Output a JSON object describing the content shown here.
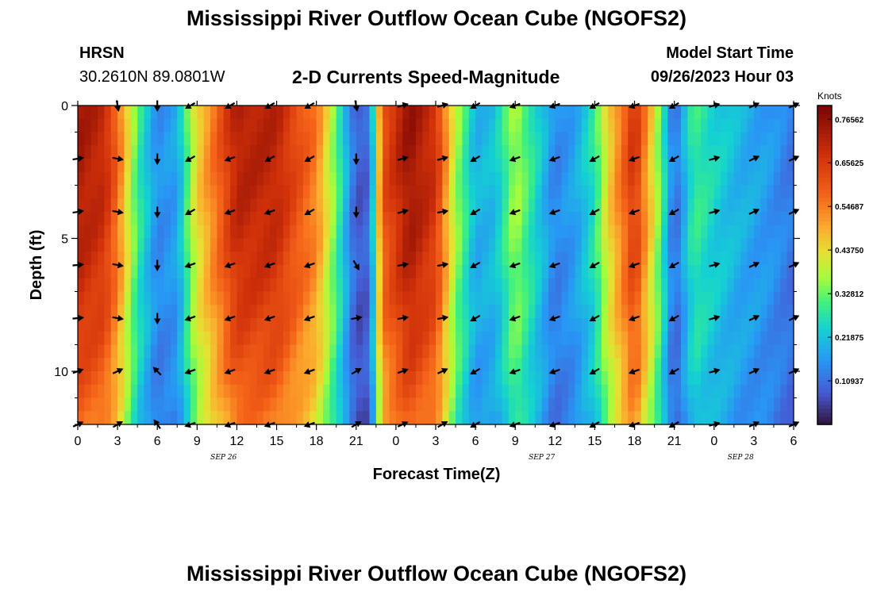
{
  "header": {
    "title": "Mississippi River Outflow Ocean Cube (NGOFS2)",
    "station": "HRSN",
    "coordinates": "30.2610N  89.0801W",
    "product": "2-D Currents Speed-Magnitude",
    "model_start_label": "Model Start Time",
    "model_start_value": "09/26/2023 Hour 03"
  },
  "footer": {
    "title": "Mississippi River Outflow Ocean Cube (NGOFS2)"
  },
  "chart_data": {
    "type": "heatmap",
    "title": "2-D Currents Speed-Magnitude",
    "xlabel": "Forecast Time(Z)",
    "ylabel": "Depth (ft)",
    "x_range": [
      0,
      54
    ],
    "y_range": [
      0,
      12
    ],
    "x_ticks": [
      0,
      3,
      6,
      9,
      12,
      15,
      18,
      21,
      24,
      27,
      30,
      33,
      36,
      39,
      42,
      45,
      48,
      51,
      54
    ],
    "x_tick_labels": [
      "0",
      "3",
      "6",
      "9",
      "12",
      "15",
      "18",
      "21",
      "0",
      "3",
      "6",
      "9",
      "12",
      "15",
      "18",
      "21",
      "0",
      "3",
      "6"
    ],
    "y_ticks": [
      0,
      5,
      10
    ],
    "y_tick_labels": [
      "0",
      "5",
      "10"
    ],
    "date_labels": [
      {
        "hour": 11,
        "text": "SEP 26"
      },
      {
        "hour": 35,
        "text": "SEP 27"
      },
      {
        "hour": 50,
        "text": "SEP 28"
      }
    ],
    "colorbar": {
      "label": "Knots",
      "min": 0.0,
      "max": 0.8,
      "ticks": [
        0.76562,
        0.65625,
        0.54687,
        0.4375,
        0.32812,
        0.21875,
        0.10937
      ],
      "tick_labels": [
        "0.76562",
        "0.65625",
        "0.54687",
        "0.43750",
        "0.32812",
        "0.21875",
        "0.10937"
      ]
    },
    "time_profile_knots": [
      {
        "hour": 0,
        "value": 0.74
      },
      {
        "hour": 2,
        "value": 0.7
      },
      {
        "hour": 3,
        "value": 0.58
      },
      {
        "hour": 4.5,
        "value": 0.3
      },
      {
        "hour": 6,
        "value": 0.15
      },
      {
        "hour": 7.5,
        "value": 0.18
      },
      {
        "hour": 9,
        "value": 0.45
      },
      {
        "hour": 12,
        "value": 0.72
      },
      {
        "hour": 15,
        "value": 0.71
      },
      {
        "hour": 18,
        "value": 0.55
      },
      {
        "hour": 19.5,
        "value": 0.33
      },
      {
        "hour": 21,
        "value": 0.08
      },
      {
        "hour": 22,
        "value": 0.1
      },
      {
        "hour": 23,
        "value": 0.62
      },
      {
        "hour": 25,
        "value": 0.76
      },
      {
        "hour": 27,
        "value": 0.68
      },
      {
        "hour": 28.5,
        "value": 0.38
      },
      {
        "hour": 30,
        "value": 0.2
      },
      {
        "hour": 31.5,
        "value": 0.22
      },
      {
        "hour": 33,
        "value": 0.38
      },
      {
        "hour": 34.5,
        "value": 0.26
      },
      {
        "hour": 36,
        "value": 0.14
      },
      {
        "hour": 37.5,
        "value": 0.18
      },
      {
        "hour": 39,
        "value": 0.28
      },
      {
        "hour": 40,
        "value": 0.45
      },
      {
        "hour": 42,
        "value": 0.68
      },
      {
        "hour": 43.5,
        "value": 0.42
      },
      {
        "hour": 45,
        "value": 0.1
      },
      {
        "hour": 46.5,
        "value": 0.3
      },
      {
        "hour": 48,
        "value": 0.25
      },
      {
        "hour": 50,
        "value": 0.2
      },
      {
        "hour": 52,
        "value": 0.17
      },
      {
        "hour": 54,
        "value": 0.12
      }
    ],
    "vector_depths_ft": [
      0,
      2,
      4,
      6,
      8,
      10,
      12
    ],
    "vector_columns": [
      {
        "hour": 0,
        "angles_deg": [
          null,
          10,
          10,
          5,
          5,
          20,
          25
        ]
      },
      {
        "hour": 3,
        "angles_deg": [
          -80,
          -10,
          -10,
          -10,
          -10,
          25,
          30
        ]
      },
      {
        "hour": 6,
        "angles_deg": [
          -90,
          -90,
          -90,
          -90,
          -90,
          135,
          125
        ]
      },
      {
        "hour": 8.5,
        "angles_deg": [
          210,
          210,
          210,
          200,
          200,
          200,
          200
        ]
      },
      {
        "hour": 11.5,
        "angles_deg": [
          210,
          200,
          200,
          200,
          200,
          200,
          200
        ]
      },
      {
        "hour": 14.5,
        "angles_deg": [
          210,
          210,
          200,
          200,
          200,
          200,
          200
        ]
      },
      {
        "hour": 17.5,
        "angles_deg": [
          210,
          210,
          210,
          200,
          200,
          200,
          200
        ]
      },
      {
        "hour": 21,
        "angles_deg": [
          -80,
          -90,
          -90,
          -60,
          10,
          30,
          30
        ]
      },
      {
        "hour": 24.5,
        "angles_deg": [
          15,
          15,
          15,
          10,
          10,
          20,
          25
        ]
      },
      {
        "hour": 27.5,
        "angles_deg": [
          15,
          15,
          10,
          10,
          10,
          25,
          30
        ]
      },
      {
        "hour": 30,
        "angles_deg": [
          210,
          210,
          210,
          210,
          210,
          210,
          210
        ]
      },
      {
        "hour": 33,
        "angles_deg": [
          200,
          200,
          200,
          200,
          200,
          200,
          200
        ]
      },
      {
        "hour": 36,
        "angles_deg": [
          200,
          200,
          200,
          200,
          200,
          200,
          200
        ]
      },
      {
        "hour": 39,
        "angles_deg": [
          210,
          210,
          210,
          210,
          210,
          210,
          210
        ]
      },
      {
        "hour": 42,
        "angles_deg": [
          200,
          200,
          200,
          200,
          200,
          200,
          200
        ]
      },
      {
        "hour": 45,
        "angles_deg": [
          210,
          210,
          210,
          210,
          210,
          210,
          210
        ]
      },
      {
        "hour": 48,
        "angles_deg": [
          15,
          15,
          15,
          15,
          15,
          15,
          15
        ]
      },
      {
        "hour": 51,
        "angles_deg": [
          25,
          25,
          25,
          25,
          25,
          25,
          25
        ]
      },
      {
        "hour": 54,
        "angles_deg": [
          25,
          25,
          25,
          25,
          25,
          25,
          25
        ]
      }
    ]
  }
}
